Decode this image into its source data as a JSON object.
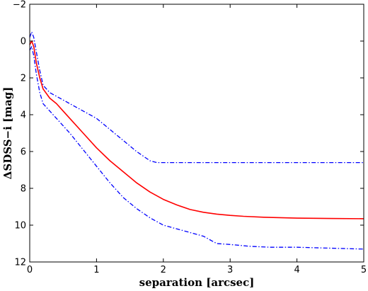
{
  "chart_data": {
    "type": "line",
    "title": "",
    "xlabel": "separation [arcsec]",
    "ylabel": "ΔSDSS−i [mag]",
    "xlim": [
      0,
      5
    ],
    "ylim": [
      12,
      -2
    ],
    "y_inverted": true,
    "grid": false,
    "legend": "none",
    "xticks": [
      0,
      1,
      2,
      3,
      4,
      5
    ],
    "yticks": [
      -2,
      0,
      2,
      4,
      6,
      8,
      10,
      12
    ],
    "series": [
      {
        "style": "solid",
        "color": "#ff0000",
        "x": [
          0.0,
          0.03,
          0.06,
          0.1,
          0.15,
          0.2,
          0.3,
          0.4,
          0.5,
          0.6,
          0.8,
          1.0,
          1.2,
          1.4,
          1.6,
          1.8,
          2.0,
          2.2,
          2.4,
          2.6,
          2.8,
          3.0,
          3.2,
          3.5,
          4.0,
          4.5,
          5.0
        ],
        "y": [
          0.2,
          0.0,
          0.3,
          1.2,
          2.0,
          2.6,
          3.1,
          3.4,
          3.8,
          4.2,
          5.0,
          5.8,
          6.5,
          7.1,
          7.7,
          8.2,
          8.6,
          8.9,
          9.15,
          9.3,
          9.4,
          9.47,
          9.52,
          9.57,
          9.62,
          9.64,
          9.65
        ]
      },
      {
        "style": "dashdot",
        "color": "#0000ff",
        "x": [
          0.0,
          0.03,
          0.06,
          0.1,
          0.15,
          0.2,
          0.3,
          0.4,
          0.6,
          0.8,
          1.0,
          1.2,
          1.4,
          1.6,
          1.8,
          1.9,
          2.0,
          2.5,
          3.0,
          3.5,
          4.0,
          4.5,
          5.0
        ],
        "y": [
          -0.2,
          -0.5,
          -0.2,
          0.6,
          1.6,
          2.4,
          2.8,
          3.0,
          3.4,
          3.8,
          4.2,
          4.8,
          5.4,
          6.0,
          6.5,
          6.6,
          6.6,
          6.6,
          6.6,
          6.6,
          6.6,
          6.6,
          6.6
        ]
      },
      {
        "style": "dashdot",
        "color": "#0000ff",
        "x": [
          0.0,
          0.03,
          0.06,
          0.1,
          0.15,
          0.2,
          0.3,
          0.4,
          0.6,
          0.8,
          1.0,
          1.2,
          1.4,
          1.6,
          1.8,
          2.0,
          2.3,
          2.6,
          2.8,
          3.0,
          3.3,
          3.6,
          4.0,
          4.5,
          5.0
        ],
        "y": [
          0.5,
          0.3,
          0.8,
          1.8,
          2.8,
          3.4,
          3.8,
          4.2,
          5.0,
          5.9,
          6.8,
          7.7,
          8.5,
          9.1,
          9.6,
          10.0,
          10.3,
          10.6,
          11.0,
          11.05,
          11.15,
          11.2,
          11.2,
          11.25,
          11.3
        ]
      }
    ]
  }
}
